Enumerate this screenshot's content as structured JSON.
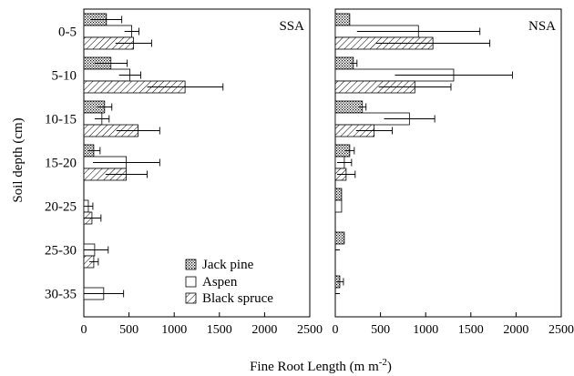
{
  "chart_data": {
    "type": "bar",
    "orientation": "horizontal",
    "ylabel": "Soil depth (cm)",
    "xlabel": "Fine Root Length (m m",
    "xlabel_sup": "-2",
    "xlabel_close": ")",
    "xlim": [
      0,
      2500
    ],
    "xticks": [
      "0",
      "500",
      "1000",
      "1500",
      "2000",
      "2500"
    ],
    "categories": [
      "0-5",
      "5-10",
      "10-15",
      "15-20",
      "20-25",
      "25-30",
      "30-35"
    ],
    "legend": {
      "placement": "lower-right of left panel",
      "entries": [
        "Jack pine",
        "Aspen",
        "Black spruce"
      ]
    },
    "series_patterns": {
      "Jack pine": "dots",
      "Aspen": "empty",
      "Black spruce": "hatch"
    },
    "panels": [
      {
        "name": "SSA",
        "series": [
          {
            "name": "Jack pine",
            "values": [
              250,
              300,
              230,
              110,
              null,
              null,
              null
            ],
            "errors": [
              170,
              180,
              80,
              70,
              null,
              null,
              null
            ]
          },
          {
            "name": "Aspen",
            "values": [
              530,
              510,
              200,
              470,
              50,
              120,
              220
            ],
            "errors": [
              80,
              120,
              80,
              370,
              50,
              150,
              220
            ]
          },
          {
            "name": "Black spruce",
            "values": [
              550,
              1120,
              600,
              470,
              90,
              110,
              null
            ],
            "errors": [
              200,
              420,
              240,
              230,
              100,
              50,
              null
            ]
          }
        ]
      },
      {
        "name": "NSA",
        "series": [
          {
            "name": "Jack pine",
            "values": [
              160,
              200,
              300,
              160,
              70,
              100,
              50
            ],
            "errors": [
              null,
              40,
              40,
              50,
              null,
              null,
              40
            ]
          },
          {
            "name": "Aspen",
            "values": [
              920,
              1310,
              820,
              100,
              70,
              null,
              null
            ],
            "errors": [
              680,
              650,
              280,
              80,
              null,
              null,
              null
            ]
          },
          {
            "name": "Black spruce",
            "values": [
              1080,
              880,
              430,
              120,
              null,
              null,
              null
            ],
            "errors": [
              630,
              400,
              200,
              100,
              null,
              null,
              null
            ]
          }
        ]
      }
    ]
  }
}
